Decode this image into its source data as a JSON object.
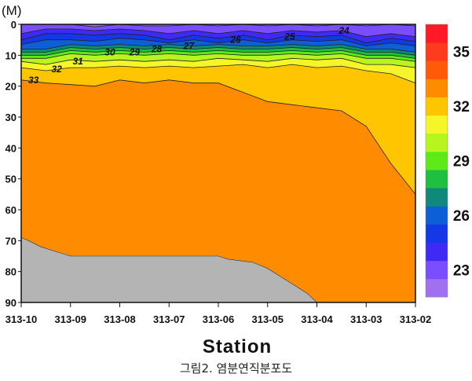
{
  "chart_data": {
    "type": "contour",
    "title": "",
    "xlabel": "Station",
    "ylabel": "(M)",
    "caption": "그림2. 염분연직분포도",
    "stations": [
      "313-10",
      "313-09",
      "313-08",
      "313-07",
      "313-06",
      "313-05",
      "313-04",
      "313-03",
      "313-02"
    ],
    "depth_ticks": [
      0,
      10,
      20,
      30,
      40,
      50,
      60,
      70,
      80,
      90
    ],
    "ylim": [
      0,
      90
    ],
    "colorbar": {
      "levels": [
        22,
        23,
        24,
        25,
        26,
        27,
        28,
        29,
        30,
        31,
        32,
        33,
        34,
        35,
        36
      ],
      "tick_values": [
        23,
        26,
        29,
        32,
        35
      ],
      "tick_labels": [
        "23",
        "26",
        "29",
        "32",
        "35"
      ],
      "colors": [
        "#a070f0",
        "#7a4dff",
        "#3f2af5",
        "#1438e6",
        "#0d5fd6",
        "#10897a",
        "#1fbf3f",
        "#5eea18",
        "#b8f51e",
        "#f5f52a",
        "#ffc600",
        "#ff8c00",
        "#ff5a08",
        "#ff3b1e",
        "#ff1a26"
      ]
    },
    "contour_labels": [
      {
        "value": "24",
        "station_pos": 6.55,
        "depth": 2
      },
      {
        "value": "25",
        "station_pos": 5.45,
        "depth": 4
      },
      {
        "value": "26",
        "station_pos": 4.35,
        "depth": 5
      },
      {
        "value": "27",
        "station_pos": 3.4,
        "depth": 7
      },
      {
        "value": "28",
        "station_pos": 2.75,
        "depth": 8
      },
      {
        "value": "29",
        "station_pos": 2.3,
        "depth": 9
      },
      {
        "value": "30",
        "station_pos": 1.8,
        "depth": 9
      },
      {
        "value": "31",
        "station_pos": 1.15,
        "depth": 12
      },
      {
        "value": "32",
        "station_pos": 0.72,
        "depth": 14.5
      },
      {
        "value": "33",
        "station_pos": 0.25,
        "depth": 18
      }
    ],
    "isolines": [
      {
        "value": 33,
        "points": [
          [
            0,
            18
          ],
          [
            0.5,
            19
          ],
          [
            1,
            19.5
          ],
          [
            1.5,
            20
          ],
          [
            2,
            18
          ],
          [
            2.5,
            19
          ],
          [
            3,
            18
          ],
          [
            3.5,
            19
          ],
          [
            4,
            19
          ],
          [
            4.5,
            22
          ],
          [
            5,
            25
          ],
          [
            5.5,
            26
          ],
          [
            6,
            27
          ],
          [
            6.5,
            28
          ],
          [
            7,
            33
          ],
          [
            7.5,
            45
          ],
          [
            8,
            55
          ]
        ]
      },
      {
        "value": 32,
        "points": [
          [
            0,
            14
          ],
          [
            0.5,
            15
          ],
          [
            1,
            14
          ],
          [
            1.5,
            14
          ],
          [
            2,
            13.5
          ],
          [
            2.5,
            14
          ],
          [
            3,
            13.5
          ],
          [
            3.5,
            14
          ],
          [
            4,
            13.5
          ],
          [
            4.5,
            13
          ],
          [
            5,
            14
          ],
          [
            5.5,
            13
          ],
          [
            6,
            14
          ],
          [
            6.5,
            13.5
          ],
          [
            7,
            15
          ],
          [
            7.5,
            16
          ],
          [
            8,
            19
          ]
        ]
      },
      {
        "value": 31,
        "points": [
          [
            0,
            12
          ],
          [
            0.5,
            13
          ],
          [
            1,
            11.5
          ],
          [
            1.5,
            12
          ],
          [
            2,
            11.5
          ],
          [
            2.5,
            12
          ],
          [
            3,
            11.5
          ],
          [
            3.5,
            12
          ],
          [
            4,
            11
          ],
          [
            4.5,
            11.5
          ],
          [
            5,
            12
          ],
          [
            5.5,
            11
          ],
          [
            6,
            11.5
          ],
          [
            6.5,
            11
          ],
          [
            7,
            13
          ],
          [
            7.5,
            13
          ],
          [
            8,
            14
          ]
        ]
      },
      {
        "value": 30,
        "points": [
          [
            0,
            11
          ],
          [
            0.5,
            11
          ],
          [
            1,
            9.5
          ],
          [
            1.5,
            10
          ],
          [
            2,
            9.5
          ],
          [
            2.5,
            10
          ],
          [
            3,
            9.5
          ],
          [
            3.5,
            10
          ],
          [
            4,
            9.5
          ],
          [
            4.5,
            10
          ],
          [
            5,
            10
          ],
          [
            5.5,
            9.5
          ],
          [
            6,
            10
          ],
          [
            6.5,
            9.5
          ],
          [
            7,
            11
          ],
          [
            7.5,
            11
          ],
          [
            8,
            12
          ]
        ]
      },
      {
        "value": 29,
        "points": [
          [
            0,
            10
          ],
          [
            0.5,
            10
          ],
          [
            1,
            8.5
          ],
          [
            1.5,
            9
          ],
          [
            2,
            8.5
          ],
          [
            2.5,
            9
          ],
          [
            3,
            8.5
          ],
          [
            3.5,
            9
          ],
          [
            4,
            8.5
          ],
          [
            4.5,
            9
          ],
          [
            5,
            9
          ],
          [
            5.5,
            8.5
          ],
          [
            6,
            9
          ],
          [
            6.5,
            8.5
          ],
          [
            7,
            10
          ],
          [
            7.5,
            10
          ],
          [
            8,
            11
          ]
        ]
      },
      {
        "value": 28,
        "points": [
          [
            0,
            9
          ],
          [
            0.5,
            9
          ],
          [
            1,
            7.5
          ],
          [
            1.5,
            8
          ],
          [
            2,
            7.5
          ],
          [
            2.5,
            8
          ],
          [
            3,
            7.5
          ],
          [
            3.5,
            8
          ],
          [
            4,
            7.5
          ],
          [
            4.5,
            8
          ],
          [
            5,
            8
          ],
          [
            5.5,
            7.5
          ],
          [
            6,
            8
          ],
          [
            6.5,
            7.5
          ],
          [
            7,
            9
          ],
          [
            7.5,
            9
          ],
          [
            8,
            10
          ]
        ]
      },
      {
        "value": 27,
        "points": [
          [
            0,
            8
          ],
          [
            0.5,
            8
          ],
          [
            1,
            6.5
          ],
          [
            1.5,
            7
          ],
          [
            2,
            6.5
          ],
          [
            2.5,
            7
          ],
          [
            3,
            6.5
          ],
          [
            3.5,
            7
          ],
          [
            4,
            6.5
          ],
          [
            4.5,
            7
          ],
          [
            5,
            7
          ],
          [
            5.5,
            6.5
          ],
          [
            6,
            7
          ],
          [
            6.5,
            6.5
          ],
          [
            7,
            8
          ],
          [
            7.5,
            8
          ],
          [
            8,
            9
          ]
        ]
      },
      {
        "value": 26,
        "points": [
          [
            0,
            6.5
          ],
          [
            0.5,
            5
          ],
          [
            1,
            5
          ],
          [
            1.5,
            5.5
          ],
          [
            2,
            4.5
          ],
          [
            2.5,
            5
          ],
          [
            3,
            6
          ],
          [
            3.5,
            5
          ],
          [
            4,
            6
          ],
          [
            4.5,
            5
          ],
          [
            5,
            6
          ],
          [
            5.5,
            5
          ],
          [
            6,
            5.5
          ],
          [
            6.5,
            5
          ],
          [
            7,
            7
          ],
          [
            7.5,
            6
          ],
          [
            8,
            7
          ]
        ]
      },
      {
        "value": 25,
        "points": [
          [
            0,
            5
          ],
          [
            0.5,
            3
          ],
          [
            1,
            3
          ],
          [
            1.5,
            3.5
          ],
          [
            2,
            3
          ],
          [
            2.5,
            3.5
          ],
          [
            3,
            5
          ],
          [
            3.5,
            3.5
          ],
          [
            4,
            4.5
          ],
          [
            4.5,
            3.5
          ],
          [
            5,
            5
          ],
          [
            5.5,
            3.5
          ],
          [
            6,
            4
          ],
          [
            6.5,
            3.5
          ],
          [
            7,
            6
          ],
          [
            7.5,
            4.5
          ],
          [
            8,
            5.5
          ]
        ]
      },
      {
        "value": 24,
        "points": [
          [
            0,
            3
          ],
          [
            0.5,
            1.5
          ],
          [
            1,
            1.5
          ],
          [
            1.5,
            2
          ],
          [
            2,
            1.5
          ],
          [
            2.5,
            2
          ],
          [
            3,
            3
          ],
          [
            3.5,
            2
          ],
          [
            4,
            3
          ],
          [
            4.5,
            2
          ],
          [
            5,
            3
          ],
          [
            5.5,
            2
          ],
          [
            6,
            2.5
          ],
          [
            6.5,
            2
          ],
          [
            7,
            4
          ],
          [
            7.5,
            3
          ],
          [
            8,
            4
          ]
        ]
      },
      {
        "value": 23,
        "points": [
          [
            0,
            0
          ],
          [
            0.5,
            0
          ],
          [
            1,
            0
          ],
          [
            1.5,
            0.8
          ],
          [
            2,
            0
          ],
          [
            2.5,
            0.5
          ],
          [
            3,
            0.5
          ],
          [
            3.5,
            0
          ],
          [
            4,
            0.5
          ],
          [
            4.5,
            0
          ],
          [
            5,
            0.5
          ],
          [
            5.5,
            0
          ],
          [
            6,
            0.5
          ],
          [
            6.5,
            0
          ],
          [
            7,
            0.5
          ],
          [
            7.5,
            0
          ],
          [
            8,
            0.5
          ]
        ]
      }
    ],
    "seabed": {
      "color": "#b4b4b4",
      "points": [
        [
          0,
          69
        ],
        [
          0.15,
          70
        ],
        [
          0.4,
          72
        ],
        [
          0.8,
          74
        ],
        [
          1,
          75
        ],
        [
          4,
          75
        ],
        [
          4.2,
          76
        ],
        [
          4.7,
          77
        ],
        [
          5,
          79
        ],
        [
          5.2,
          81
        ],
        [
          5.5,
          84
        ],
        [
          5.8,
          87
        ],
        [
          6,
          90
        ]
      ]
    }
  }
}
